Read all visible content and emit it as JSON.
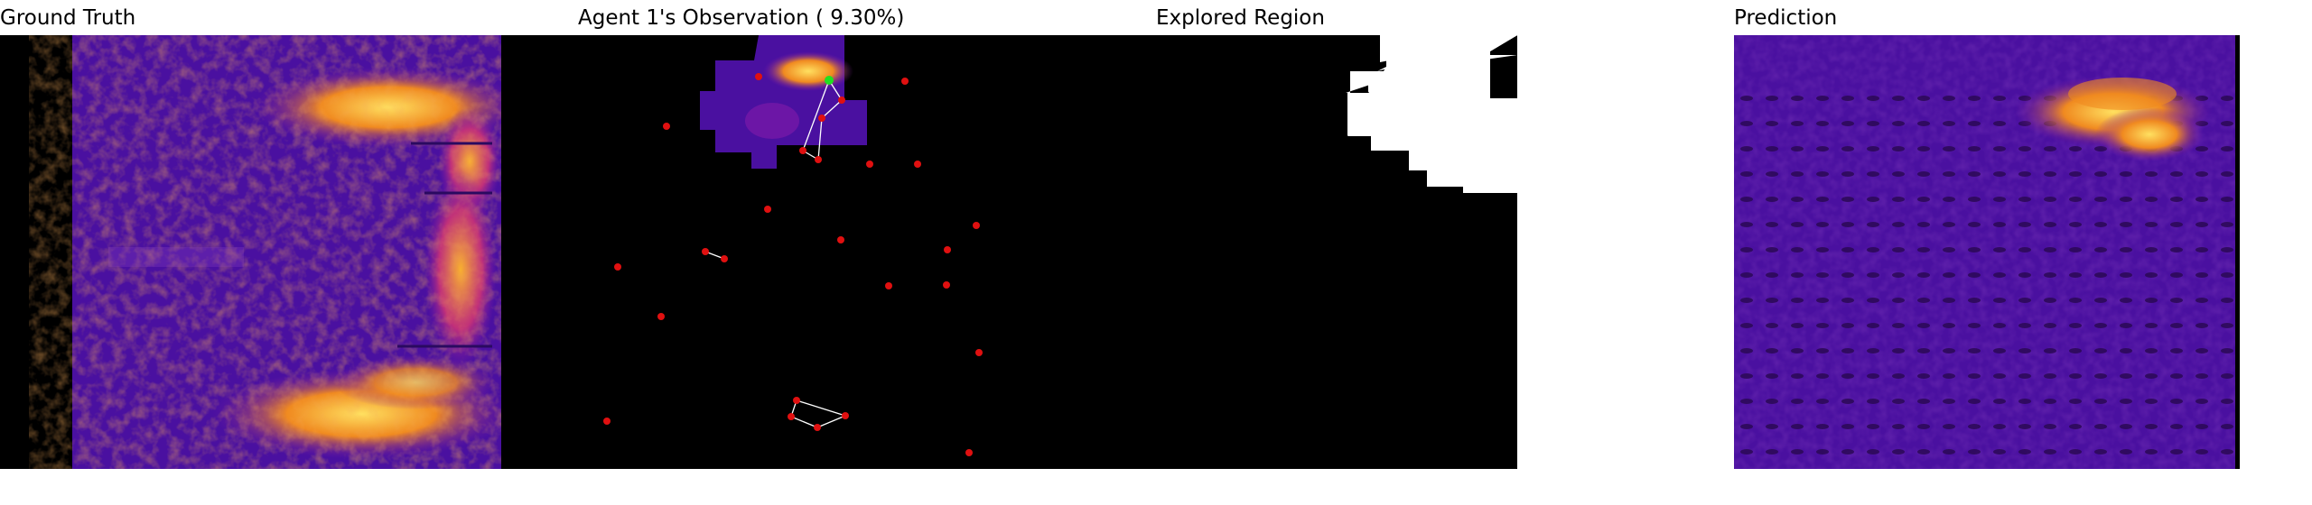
{
  "panels": [
    {
      "title": "Ground Truth"
    },
    {
      "title": "Agent 1's Observation ( 9.30%)"
    },
    {
      "title": "Explored Region"
    },
    {
      "title": "Prediction"
    }
  ],
  "colors": {
    "background": "#000000",
    "heatmap_low": "#3d0a8a",
    "heatmap_mid": "#7a1aa8",
    "heatmap_high": "#f0a020",
    "heatmap_peak": "#ffe060",
    "agent_marker": "#e01010",
    "active_agent": "#20e020",
    "link_line": "#ffffff",
    "explored_mask": "#ffffff"
  },
  "observation_coverage_percent": 9.3
}
